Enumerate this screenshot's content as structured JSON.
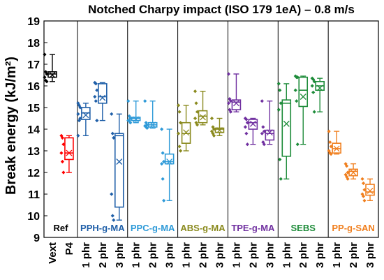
{
  "chart_data": {
    "type": "box",
    "title": "Notched Charpy impact (ISO 179 1eA) – 0.8 m/s",
    "ylabel": "Break energy (kJ/m²)",
    "xlabel": "",
    "ylim": [
      9,
      19
    ],
    "yticks": [
      9,
      10,
      11,
      12,
      13,
      14,
      15,
      16,
      17,
      18,
      19
    ],
    "grid": false,
    "groups": [
      {
        "label": "Ref",
        "color": "#000000",
        "categories": [
          "Vext",
          "P4"
        ]
      },
      {
        "label": "PPH-g-MA",
        "color": "#1f5fa8",
        "categories": [
          "1 phr",
          "2 phr",
          "3 phr"
        ]
      },
      {
        "label": "PPC-g-MA",
        "color": "#2e9ad8",
        "categories": [
          "1 phr",
          "2 phr",
          "3 phr"
        ]
      },
      {
        "label": "ABS-g-MA",
        "color": "#8a8a1e",
        "categories": [
          "1 phr",
          "2 phr",
          "3 phr"
        ]
      },
      {
        "label": "TPE-g-MA",
        "color": "#7030a0",
        "categories": [
          "1 phr",
          "2 phr",
          "3 phr"
        ]
      },
      {
        "label": "SEBS",
        "color": "#1e8c3a",
        "categories": [
          "1 phr",
          "2 phr",
          "3 phr"
        ]
      },
      {
        "label": "PP-g-SAN",
        "color": "#f07f1e",
        "categories": [
          "1 phr",
          "2 phr",
          "3 phr"
        ]
      }
    ],
    "series": [
      {
        "category": "Vext",
        "color": "#000000",
        "min": 16.2,
        "q1": 16.4,
        "median": 16.55,
        "mean": 16.5,
        "q3": 16.65,
        "max": 17.45,
        "points": [
          17.45,
          16.65,
          16.55,
          16.4,
          16.25,
          16.2
        ]
      },
      {
        "category": "P4",
        "color": "#ff0000",
        "min": 12.0,
        "q1": 12.6,
        "median": 12.9,
        "mean": 12.9,
        "q3": 13.6,
        "max": 13.7,
        "points": [
          13.7,
          13.6,
          13.3,
          12.9,
          12.5,
          12.0
        ]
      },
      {
        "category": "1 phr",
        "color": "#1f5fa8",
        "min": 13.7,
        "q1": 14.45,
        "median": 14.75,
        "mean": 14.65,
        "q3": 15.0,
        "max": 15.2,
        "points": [
          15.2,
          15.1,
          15.0,
          14.7,
          14.4,
          14.5,
          13.7
        ]
      },
      {
        "category": "2 phr",
        "color": "#1f5fa8",
        "min": 14.4,
        "q1": 15.2,
        "median": 15.5,
        "mean": 15.45,
        "q3": 16.1,
        "max": 16.15,
        "points": [
          16.15,
          16.1,
          15.8,
          15.5,
          15.3,
          14.4
        ]
      },
      {
        "category": "3 phr",
        "color": "#1f5fa8",
        "min": 9.8,
        "q1": 10.4,
        "median": 13.7,
        "mean": 12.5,
        "q3": 13.8,
        "max": 14.7,
        "points": [
          14.7,
          13.8,
          13.6,
          11.0,
          10.0,
          9.8
        ]
      },
      {
        "category": "1 phr",
        "color": "#2e9ad8",
        "min": 14.3,
        "q1": 14.4,
        "median": 14.5,
        "mean": 14.45,
        "q3": 14.55,
        "max": 15.3,
        "points": [
          15.3,
          14.6,
          14.5,
          14.4,
          14.4,
          14.3
        ]
      },
      {
        "category": "2 phr",
        "color": "#2e9ad8",
        "min": 14.05,
        "q1": 14.1,
        "median": 14.2,
        "mean": 14.2,
        "q3": 14.3,
        "max": 15.3,
        "points": [
          15.3,
          14.3,
          14.2,
          14.15,
          14.1,
          14.05
        ]
      },
      {
        "category": "3 phr",
        "color": "#2e9ad8",
        "min": 10.7,
        "q1": 12.4,
        "median": 12.5,
        "mean": 12.5,
        "q3": 12.85,
        "max": 14.0,
        "points": [
          14.0,
          12.9,
          12.5,
          12.4,
          11.7,
          10.7
        ]
      },
      {
        "category": "1 phr",
        "color": "#8a8a1e",
        "min": 13.0,
        "q1": 13.35,
        "median": 13.8,
        "mean": 13.85,
        "q3": 14.3,
        "max": 15.1,
        "points": [
          15.1,
          14.8,
          14.3,
          13.8,
          13.2,
          13.0
        ]
      },
      {
        "category": "2 phr",
        "color": "#8a8a1e",
        "min": 14.2,
        "q1": 14.3,
        "median": 14.6,
        "mean": 14.55,
        "q3": 14.85,
        "max": 15.75,
        "points": [
          15.75,
          15.2,
          14.8,
          14.5,
          14.3,
          14.2
        ]
      },
      {
        "category": "3 phr",
        "color": "#8a8a1e",
        "min": 13.7,
        "q1": 13.85,
        "median": 14.0,
        "mean": 13.95,
        "q3": 14.05,
        "max": 14.5,
        "points": [
          14.5,
          14.1,
          14.0,
          13.9,
          13.8,
          13.7
        ]
      },
      {
        "category": "1 phr",
        "color": "#7030a0",
        "min": 14.8,
        "q1": 14.9,
        "median": 15.25,
        "mean": 15.2,
        "q3": 15.35,
        "max": 16.55,
        "points": [
          16.55,
          15.4,
          15.3,
          15.2,
          14.9,
          14.8
        ]
      },
      {
        "category": "2 phr",
        "color": "#7030a0",
        "min": 13.3,
        "q1": 14.0,
        "median": 14.3,
        "mean": 14.25,
        "q3": 14.45,
        "max": 14.5,
        "points": [
          14.5,
          14.45,
          14.3,
          14.1,
          13.8,
          13.3
        ]
      },
      {
        "category": "3 phr",
        "color": "#7030a0",
        "min": 13.3,
        "q1": 13.5,
        "median": 13.8,
        "mean": 13.85,
        "q3": 13.95,
        "max": 15.3,
        "points": [
          15.3,
          14.1,
          13.9,
          13.8,
          13.4,
          13.3
        ]
      },
      {
        "category": "1 phr",
        "color": "#1e8c3a",
        "min": 11.7,
        "q1": 12.75,
        "median": 15.2,
        "mean": 14.25,
        "q3": 15.35,
        "max": 16.1,
        "points": [
          16.1,
          15.8,
          15.2,
          14.9,
          12.6,
          11.7
        ]
      },
      {
        "category": "2 phr",
        "color": "#1e8c3a",
        "min": 13.3,
        "q1": 15.05,
        "median": 15.8,
        "mean": 15.5,
        "q3": 16.4,
        "max": 16.45,
        "points": [
          16.45,
          16.4,
          16.4,
          15.8,
          15.3,
          13.3
        ]
      },
      {
        "category": "3 phr",
        "color": "#1e8c3a",
        "min": 14.8,
        "q1": 15.8,
        "median": 16.0,
        "mean": 15.9,
        "q3": 16.2,
        "max": 16.35,
        "points": [
          16.35,
          16.3,
          16.2,
          16.0,
          15.7,
          14.8
        ]
      },
      {
        "category": "1 phr",
        "color": "#f07f1e",
        "min": 12.85,
        "q1": 12.9,
        "median": 13.1,
        "mean": 13.1,
        "q3": 13.35,
        "max": 13.9,
        "points": [
          13.9,
          13.4,
          13.2,
          13.0,
          12.9,
          12.85
        ]
      },
      {
        "category": "2 phr",
        "color": "#f07f1e",
        "min": 11.7,
        "q1": 11.85,
        "median": 12.05,
        "mean": 12.0,
        "q3": 12.15,
        "max": 12.4,
        "points": [
          12.4,
          12.3,
          12.0,
          11.9,
          11.8,
          11.7
        ]
      },
      {
        "category": "3 phr",
        "color": "#f07f1e",
        "min": 10.7,
        "q1": 10.95,
        "median": 11.1,
        "mean": 11.15,
        "q3": 11.45,
        "max": 11.7,
        "points": [
          11.7,
          11.5,
          11.2,
          11.0,
          10.9,
          10.7
        ]
      }
    ]
  }
}
